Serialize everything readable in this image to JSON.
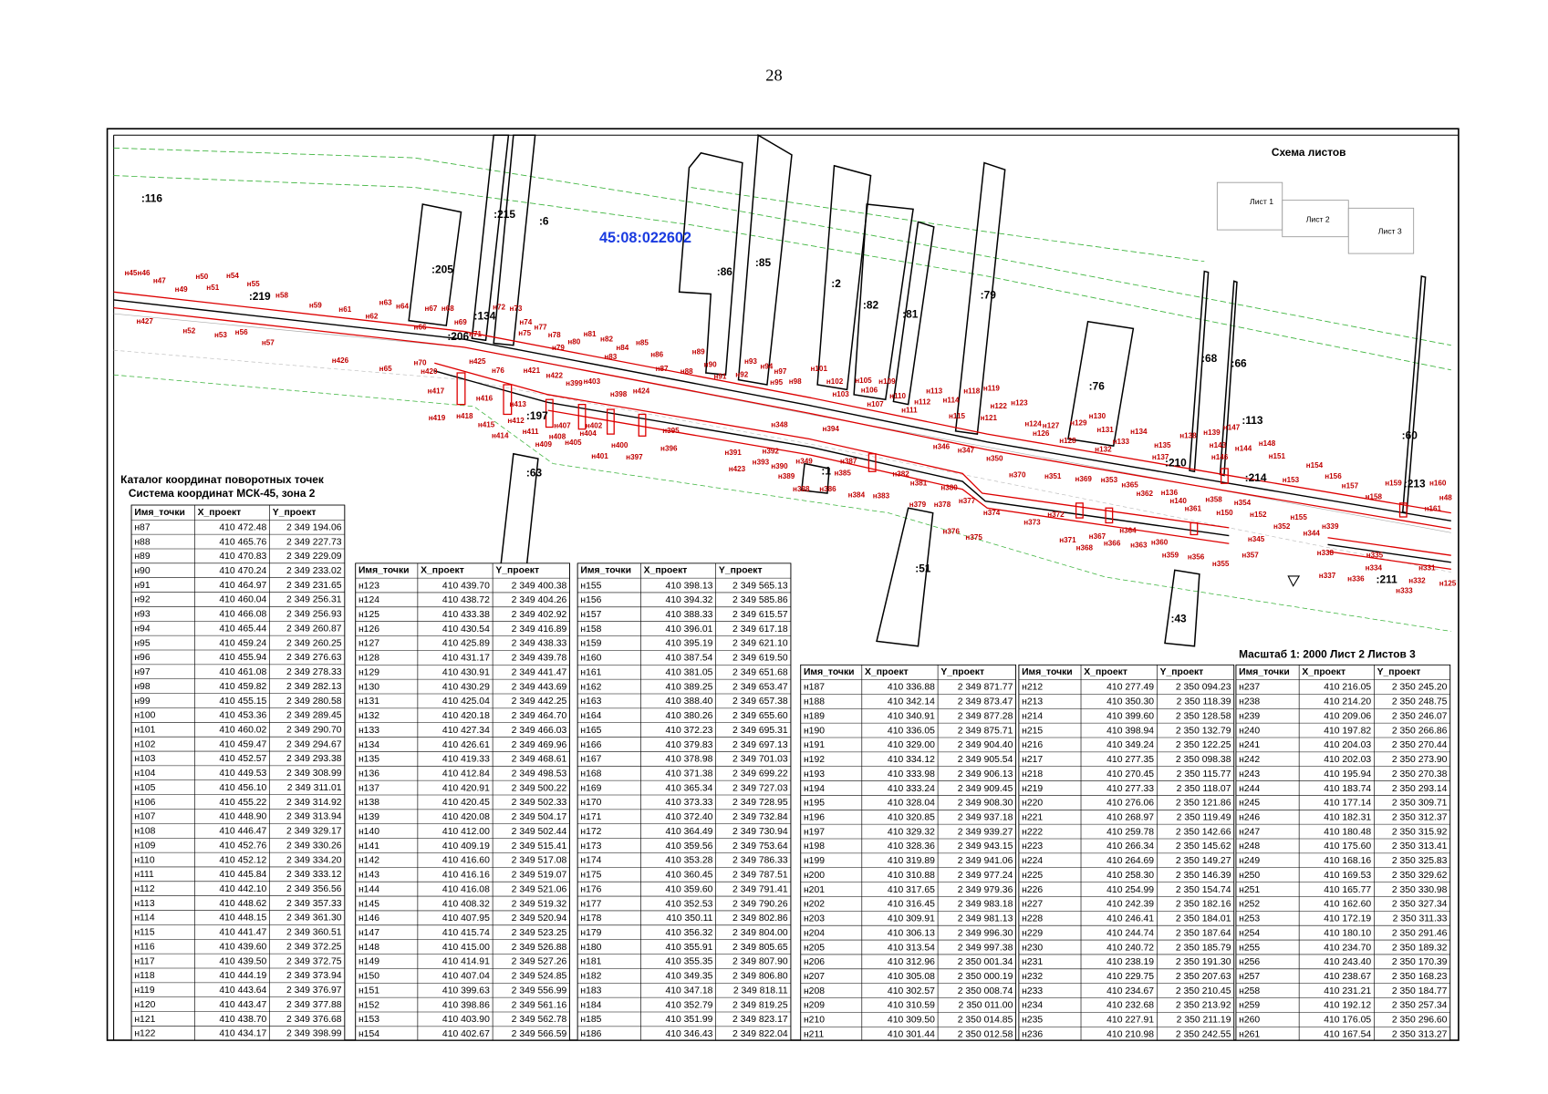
{
  "page_number": "28",
  "map": {
    "block": "45:08:022602",
    "scale": "Масштаб 1: 2000  Лист 2 Листов 3",
    "schema": {
      "title": "Схема  листов",
      "sheets": [
        "Лист 1",
        "Лист 2",
        "Лист 3"
      ]
    },
    "parcels": [
      ":116",
      ":215",
      ":6",
      ":205",
      ":219",
      ":134",
      ":206",
      ":86",
      ":85",
      ":2",
      ":82",
      ":81",
      ":79",
      ":76",
      ":68",
      ":66",
      ":113",
      ":210",
      ":214",
      ":60",
      ":213",
      ":197",
      ":63",
      ":1",
      ":51",
      ":43",
      ":211"
    ],
    "points": [
      "н45",
      "н46",
      "н47",
      "н49",
      "н50",
      "н51",
      "н54",
      "н55",
      "н58",
      "н59",
      "н61",
      "н62",
      "н63",
      "н64",
      "н66",
      "н67",
      "н68",
      "н69",
      "н71",
      "н72",
      "н73",
      "н74",
      "н75",
      "н77",
      "н78",
      "н79",
      "н80",
      "н81",
      "н82",
      "н83",
      "н84",
      "н85",
      "н86",
      "н87",
      "н88",
      "н89",
      "н90",
      "н91",
      "н92",
      "н93",
      "н94",
      "н97",
      "н95",
      "н98",
      "н101",
      "н102",
      "н103",
      "н105",
      "н106",
      "н107",
      "н109",
      "н110",
      "н111",
      "н112",
      "н113",
      "н114",
      "н115",
      "н118",
      "н119",
      "н121",
      "н122",
      "н123",
      "н124",
      "н52",
      "н53",
      "н56",
      "н57",
      "н426",
      "н65",
      "н70",
      "н420",
      "н425",
      "н76",
      "н421",
      "н422",
      "н417",
      "н416",
      "н419",
      "н418",
      "н415",
      "н414",
      "н413",
      "н412",
      "н411",
      "н409",
      "н407",
      "н408",
      "н405",
      "н402",
      "н404",
      "н401",
      "н400",
      "н397",
      "н395",
      "н396",
      "н403",
      "н399",
      "н398",
      "н424",
      "н348",
      "н394",
      "н391",
      "н392",
      "н393",
      "н423",
      "н390",
      "н349",
      "н389",
      "н388",
      "н386",
      "н387",
      "н385",
      "н384",
      "н383",
      "н382",
      "н381",
      "н379",
      "н380",
      "н378",
      "н377",
      "н376",
      "н375",
      "н374",
      "н373",
      "н372",
      "н371",
      "н368",
      "н367",
      "н366",
      "н364",
      "н363",
      "н360",
      "н359",
      "н356",
      "н355",
      "н357",
      "н345",
      "н352",
      "н351",
      "н350",
      "н347",
      "н346",
      "н370",
      "н369",
      "н353",
      "н365",
      "н362",
      "н136",
      "н140",
      "н361",
      "н358",
      "н150",
      "н354",
      "н152",
      "н155",
      "н344",
      "н339",
      "н338",
      "н337",
      "н336",
      "н335",
      "н334",
      "н333",
      "н332",
      "н331",
      "н125",
      "н126",
      "н127",
      "н128",
      "н129",
      "н130",
      "н131",
      "н132",
      "н133",
      "н134",
      "н135",
      "н137",
      "н138",
      "н139",
      "н143",
      "н146",
      "н147",
      "н144",
      "н148",
      "н151",
      "н153",
      "н154",
      "н156",
      "н157",
      "н158",
      "н159",
      "н160",
      "н161",
      "н48",
      "н427"
    ]
  },
  "catalog": {
    "title": "Каталог координат поворотных точек",
    "subtitle": "Система координат  МСК-45, зона 2"
  },
  "tables": [
    {
      "columns": [
        "Имя_точки",
        "X_проект",
        "Y_проект"
      ],
      "rows": [
        [
          "н87",
          "410 472.48",
          "2 349 194.06"
        ],
        [
          "н88",
          "410 465.76",
          "2 349 227.73"
        ],
        [
          "н89",
          "410 470.83",
          "2 349 229.09"
        ],
        [
          "н90",
          "410 470.24",
          "2 349 233.02"
        ],
        [
          "н91",
          "410 464.97",
          "2 349 231.65"
        ],
        [
          "н92",
          "410 460.04",
          "2 349 256.31"
        ],
        [
          "н93",
          "410 466.08",
          "2 349 256.93"
        ],
        [
          "н94",
          "410 465.44",
          "2 349 260.87"
        ],
        [
          "н95",
          "410 459.24",
          "2 349 260.25"
        ],
        [
          "н96",
          "410 455.94",
          "2 349 276.63"
        ],
        [
          "н97",
          "410 461.08",
          "2 349 278.33"
        ],
        [
          "н98",
          "410 459.82",
          "2 349 282.13"
        ],
        [
          "н99",
          "410 455.15",
          "2 349 280.58"
        ],
        [
          "н100",
          "410 453.36",
          "2 349 289.45"
        ],
        [
          "н101",
          "410 460.02",
          "2 349 290.70"
        ],
        [
          "н102",
          "410 459.47",
          "2 349 294.67"
        ],
        [
          "н103",
          "410 452.57",
          "2 349 293.38"
        ],
        [
          "н104",
          "410 449.53",
          "2 349 308.99"
        ],
        [
          "н105",
          "410 456.10",
          "2 349 311.01"
        ],
        [
          "н106",
          "410 455.22",
          "2 349 314.92"
        ],
        [
          "н107",
          "410 448.90",
          "2 349 313.94"
        ],
        [
          "н108",
          "410 446.47",
          "2 349 329.17"
        ],
        [
          "н109",
          "410 452.76",
          "2 349 330.26"
        ],
        [
          "н110",
          "410 452.12",
          "2 349 334.20"
        ],
        [
          "н111",
          "410 445.84",
          "2 349 333.12"
        ],
        [
          "н112",
          "410 442.10",
          "2 349 356.56"
        ],
        [
          "н113",
          "410 448.62",
          "2 349 357.33"
        ],
        [
          "н114",
          "410 448.15",
          "2 349 361.30"
        ],
        [
          "н115",
          "410 441.47",
          "2 349 360.51"
        ],
        [
          "н116",
          "410 439.60",
          "2 349 372.25"
        ],
        [
          "н117",
          "410 439.50",
          "2 349 372.75"
        ],
        [
          "н118",
          "410 444.19",
          "2 349 373.94"
        ],
        [
          "н119",
          "410 443.64",
          "2 349 376.97"
        ],
        [
          "н120",
          "410 443.47",
          "2 349 377.88"
        ],
        [
          "н121",
          "410 438.70",
          "2 349 376.68"
        ],
        [
          "н122",
          "410 434.17",
          "2 349 398.99"
        ]
      ]
    },
    {
      "columns": [
        "Имя_точки",
        "X_проект",
        "Y_проект"
      ],
      "rows": [
        [
          "н123",
          "410 439.70",
          "2 349 400.38"
        ],
        [
          "н124",
          "410 438.72",
          "2 349 404.26"
        ],
        [
          "н125",
          "410 433.38",
          "2 349 402.92"
        ],
        [
          "н126",
          "410 430.54",
          "2 349 416.89"
        ],
        [
          "н127",
          "410 425.89",
          "2 349 438.33"
        ],
        [
          "н128",
          "410 431.17",
          "2 349 439.78"
        ],
        [
          "н129",
          "410 430.91",
          "2 349 441.47"
        ],
        [
          "н130",
          "410 430.29",
          "2 349 443.69"
        ],
        [
          "н131",
          "410 425.04",
          "2 349 442.25"
        ],
        [
          "н132",
          "410 420.18",
          "2 349 464.70"
        ],
        [
          "н133",
          "410 427.34",
          "2 349 466.03"
        ],
        [
          "н134",
          "410 426.61",
          "2 349 469.96"
        ],
        [
          "н135",
          "410 419.33",
          "2 349 468.61"
        ],
        [
          "н136",
          "410 412.84",
          "2 349 498.53"
        ],
        [
          "н137",
          "410 420.91",
          "2 349 500.22"
        ],
        [
          "н138",
          "410 420.45",
          "2 349 502.33"
        ],
        [
          "н139",
          "410 420.08",
          "2 349 504.17"
        ],
        [
          "н140",
          "410 412.00",
          "2 349 502.44"
        ],
        [
          "н141",
          "410 409.19",
          "2 349 515.41"
        ],
        [
          "н142",
          "410 416.60",
          "2 349 517.08"
        ],
        [
          "н143",
          "410 416.16",
          "2 349 519.07"
        ],
        [
          "н144",
          "410 416.08",
          "2 349 521.06"
        ],
        [
          "н145",
          "410 408.32",
          "2 349 519.32"
        ],
        [
          "н146",
          "410 407.95",
          "2 349 520.94"
        ],
        [
          "н147",
          "410 415.74",
          "2 349 523.25"
        ],
        [
          "н148",
          "410 415.00",
          "2 349 526.88"
        ],
        [
          "н149",
          "410 414.91",
          "2 349 527.26"
        ],
        [
          "н150",
          "410 407.04",
          "2 349 524.85"
        ],
        [
          "н151",
          "410 399.63",
          "2 349 556.99"
        ],
        [
          "н152",
          "410 398.86",
          "2 349 561.16"
        ],
        [
          "н153",
          "410 403.90",
          "2 349 562.78"
        ],
        [
          "н154",
          "410 402.67",
          "2 349 566.59"
        ]
      ]
    },
    {
      "columns": [
        "Имя_точки",
        "X_проект",
        "Y_проект"
      ],
      "rows": [
        [
          "н155",
          "410 398.13",
          "2 349 565.13"
        ],
        [
          "н156",
          "410 394.32",
          "2 349 585.86"
        ],
        [
          "н157",
          "410 388.33",
          "2 349 615.57"
        ],
        [
          "н158",
          "410 396.01",
          "2 349 617.18"
        ],
        [
          "н159",
          "410 395.19",
          "2 349 621.10"
        ],
        [
          "н160",
          "410 387.54",
          "2 349 619.50"
        ],
        [
          "н161",
          "410 381.05",
          "2 349 651.68"
        ],
        [
          "н162",
          "410 389.25",
          "2 349 653.47"
        ],
        [
          "н163",
          "410 388.40",
          "2 349 657.38"
        ],
        [
          "н164",
          "410 380.26",
          "2 349 655.60"
        ],
        [
          "н165",
          "410 372.23",
          "2 349 695.31"
        ],
        [
          "н166",
          "410 379.83",
          "2 349 697.13"
        ],
        [
          "н167",
          "410 378.98",
          "2 349 701.03"
        ],
        [
          "н168",
          "410 371.38",
          "2 349 699.22"
        ],
        [
          "н169",
          "410 365.34",
          "2 349 727.03"
        ],
        [
          "н170",
          "410 373.33",
          "2 349 728.95"
        ],
        [
          "н171",
          "410 372.40",
          "2 349 732.84"
        ],
        [
          "н172",
          "410 364.49",
          "2 349 730.94"
        ],
        [
          "н173",
          "410 359.56",
          "2 349 753.64"
        ],
        [
          "н174",
          "410 353.28",
          "2 349 786.33"
        ],
        [
          "н175",
          "410 360.45",
          "2 349 787.51"
        ],
        [
          "н176",
          "410 359.60",
          "2 349 791.41"
        ],
        [
          "н177",
          "410 352.53",
          "2 349 790.26"
        ],
        [
          "н178",
          "410 350.11",
          "2 349 802.86"
        ],
        [
          "н179",
          "410 356.32",
          "2 349 804.00"
        ],
        [
          "н180",
          "410 355.91",
          "2 349 805.65"
        ],
        [
          "н181",
          "410 355.35",
          "2 349 807.90"
        ],
        [
          "н182",
          "410 349.35",
          "2 349 806.80"
        ],
        [
          "н183",
          "410 347.18",
          "2 349 818.11"
        ],
        [
          "н184",
          "410 352.79",
          "2 349 819.25"
        ],
        [
          "н185",
          "410 351.99",
          "2 349 823.17"
        ],
        [
          "н186",
          "410 346.43",
          "2 349 822.04"
        ]
      ]
    },
    {
      "columns": [
        "Имя_точки",
        "X_проект",
        "Y_проект"
      ],
      "rows": [
        [
          "н187",
          "410 336.88",
          "2 349 871.77"
        ],
        [
          "н188",
          "410 342.14",
          "2 349 873.47"
        ],
        [
          "н189",
          "410 340.91",
          "2 349 877.28"
        ],
        [
          "н190",
          "410 336.05",
          "2 349 875.71"
        ],
        [
          "н191",
          "410 329.00",
          "2 349 904.40"
        ],
        [
          "н192",
          "410 334.12",
          "2 349 905.54"
        ],
        [
          "н193",
          "410 333.98",
          "2 349 906.13"
        ],
        [
          "н194",
          "410 333.24",
          "2 349 909.45"
        ],
        [
          "н195",
          "410 328.04",
          "2 349 908.30"
        ],
        [
          "н196",
          "410 320.85",
          "2 349 937.18"
        ],
        [
          "н197",
          "410 329.32",
          "2 349 939.27"
        ],
        [
          "н198",
          "410 328.36",
          "2 349 943.15"
        ],
        [
          "н199",
          "410 319.89",
          "2 349 941.06"
        ],
        [
          "н200",
          "410 310.88",
          "2 349 977.24"
        ],
        [
          "н201",
          "410 317.65",
          "2 349 979.36"
        ],
        [
          "н202",
          "410 316.45",
          "2 349 983.18"
        ],
        [
          "н203",
          "410 309.91",
          "2 349 981.13"
        ],
        [
          "н204",
          "410 306.13",
          "2 349 996.30"
        ],
        [
          "н205",
          "410 313.54",
          "2 349 997.38"
        ],
        [
          "н206",
          "410 312.96",
          "2 350 001.34"
        ],
        [
          "н207",
          "410 305.08",
          "2 350 000.19"
        ],
        [
          "н208",
          "410 302.57",
          "2 350 008.74"
        ],
        [
          "н209",
          "410 310.59",
          "2 350 011.00"
        ],
        [
          "н210",
          "410 309.50",
          "2 350 014.85"
        ],
        [
          "н211",
          "410 301.44",
          "2 350 012.58"
        ]
      ]
    },
    {
      "columns": [
        "Имя_точки",
        "X_проект",
        "Y_проект"
      ],
      "rows": [
        [
          "н212",
          "410 277.49",
          "2 350 094.23"
        ],
        [
          "н213",
          "410 350.30",
          "2 350 118.39"
        ],
        [
          "н214",
          "410 399.60",
          "2 350 128.58"
        ],
        [
          "н215",
          "410 398.94",
          "2 350 132.79"
        ],
        [
          "н216",
          "410 349.24",
          "2 350 122.25"
        ],
        [
          "н217",
          "410 277.35",
          "2 350 098.38"
        ],
        [
          "н218",
          "410 270.45",
          "2 350 115.77"
        ],
        [
          "н219",
          "410 277.33",
          "2 350 118.07"
        ],
        [
          "н220",
          "410 276.06",
          "2 350 121.86"
        ],
        [
          "н221",
          "410 268.97",
          "2 350 119.49"
        ],
        [
          "н222",
          "410 259.78",
          "2 350 142.66"
        ],
        [
          "н223",
          "410 266.34",
          "2 350 145.62"
        ],
        [
          "н224",
          "410 264.69",
          "2 350 149.27"
        ],
        [
          "н225",
          "410 258.30",
          "2 350 146.39"
        ],
        [
          "н226",
          "410 254.99",
          "2 350 154.74"
        ],
        [
          "н227",
          "410 242.39",
          "2 350 182.16"
        ],
        [
          "н228",
          "410 246.41",
          "2 350 184.01"
        ],
        [
          "н229",
          "410 244.74",
          "2 350 187.64"
        ],
        [
          "н230",
          "410 240.72",
          "2 350 185.79"
        ],
        [
          "н231",
          "410 238.19",
          "2 350 191.30"
        ],
        [
          "н232",
          "410 229.75",
          "2 350 207.63"
        ],
        [
          "н233",
          "410 234.67",
          "2 350 210.45"
        ],
        [
          "н234",
          "410 232.68",
          "2 350 213.92"
        ],
        [
          "н235",
          "410 227.91",
          "2 350 211.19"
        ],
        [
          "н236",
          "410 210.98",
          "2 350 242.55"
        ]
      ]
    },
    {
      "columns": [
        "Имя_точки",
        "X_проект",
        "Y_проект"
      ],
      "rows": [
        [
          "н237",
          "410 216.05",
          "2 350 245.20"
        ],
        [
          "н238",
          "410 214.20",
          "2 350 248.75"
        ],
        [
          "н239",
          "410 209.06",
          "2 350 246.07"
        ],
        [
          "н240",
          "410 197.82",
          "2 350 266.86"
        ],
        [
          "н241",
          "410 204.03",
          "2 350 270.44"
        ],
        [
          "н242",
          "410 202.03",
          "2 350 273.90"
        ],
        [
          "н243",
          "410 195.94",
          "2 350 270.38"
        ],
        [
          "н244",
          "410 183.74",
          "2 350 293.14"
        ],
        [
          "н245",
          "410 177.14",
          "2 350 309.71"
        ],
        [
          "н246",
          "410 182.31",
          "2 350 312.37"
        ],
        [
          "н247",
          "410 180.48",
          "2 350 315.92"
        ],
        [
          "н248",
          "410 175.60",
          "2 350 313.41"
        ],
        [
          "н249",
          "410 168.16",
          "2 350 325.83"
        ],
        [
          "н250",
          "410 169.53",
          "2 350 329.62"
        ],
        [
          "н251",
          "410 165.77",
          "2 350 330.98"
        ],
        [
          "н252",
          "410 162.60",
          "2 350 327.34"
        ],
        [
          "н253",
          "410 172.19",
          "2 350 311.33"
        ],
        [
          "н254",
          "410 180.10",
          "2 350 291.46"
        ],
        [
          "н255",
          "410 234.70",
          "2 350 189.32"
        ],
        [
          "н256",
          "410 243.40",
          "2 350 170.39"
        ],
        [
          "н257",
          "410 238.67",
          "2 350 168.23"
        ],
        [
          "н258",
          "410 231.21",
          "2 350 184.77"
        ],
        [
          "н259",
          "410 192.12",
          "2 350 257.34"
        ],
        [
          "н260",
          "410 176.05",
          "2 350 296.60"
        ],
        [
          "н261",
          "410 167.54",
          "2 350 313.27"
        ]
      ]
    }
  ]
}
